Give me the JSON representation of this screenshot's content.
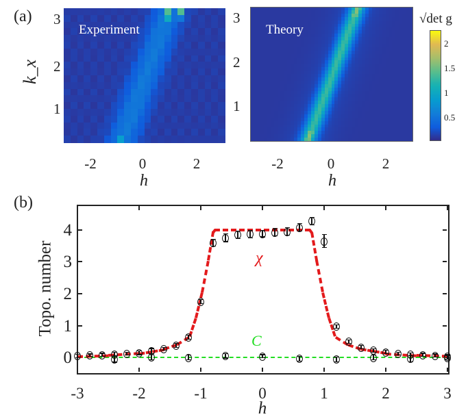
{
  "panel_labels": {
    "a": "(a)",
    "b": "(b)"
  },
  "colors": {
    "chi_theory": "#e31a1c",
    "c_theory": "#22dd22",
    "points": "#111111",
    "colormap": "parula"
  },
  "chart_data": [
    {
      "type": "heatmap",
      "panel": "(a)",
      "title": "Experiment",
      "xlabel": "h",
      "ylabel": "k_x",
      "xticks": [
        "-2",
        "0",
        "2"
      ],
      "yticks": [
        "1",
        "2",
        "3"
      ],
      "xlim": [
        -3,
        3
      ],
      "ylim": [
        0.25,
        3.26
      ],
      "colorscale_range": [
        0,
        2.2
      ]
    },
    {
      "type": "heatmap",
      "panel": "(a)",
      "title": "Theory",
      "xlabel": "h",
      "xticks": [
        "-2",
        "0",
        "2"
      ],
      "yticks": [
        "1",
        "2",
        "3"
      ],
      "xlim": [
        -3,
        3
      ],
      "ylim": [
        0.25,
        3.26
      ],
      "colorbar": {
        "label": "√det g",
        "ticks": [
          "0.5",
          "1",
          "1.5",
          "2"
        ],
        "range": [
          0,
          2.2
        ]
      }
    },
    {
      "type": "scatter",
      "panel": "(b)",
      "xlabel": "h",
      "ylabel": "Topo. number",
      "xlim": [
        -3,
        3
      ],
      "ylim": [
        -0.47,
        4.77
      ],
      "xticks": [
        "-3",
        "-2",
        "-1",
        "0",
        "1",
        "2",
        "3"
      ],
      "yticks": [
        "0",
        "1",
        "2",
        "3",
        "4"
      ],
      "grid": false,
      "annotations": {
        "chi": "χ",
        "c": "C"
      },
      "chi_points": {
        "x": [
          -3,
          -2.8,
          -2.6,
          -2.4,
          -2.2,
          -2.0,
          -1.8,
          -1.6,
          -1.4,
          -1.2,
          -1.0,
          -0.8,
          -0.6,
          -0.4,
          -0.2,
          0,
          0.2,
          0.4,
          0.6,
          0.8,
          1.0,
          1.2,
          1.4,
          1.6,
          1.8,
          2.0,
          2.2,
          2.4,
          2.6,
          2.8,
          3.0
        ],
        "y": [
          0.05,
          0.07,
          0.08,
          0.1,
          0.12,
          0.15,
          0.2,
          0.27,
          0.38,
          0.64,
          1.75,
          3.6,
          3.75,
          3.85,
          3.87,
          3.88,
          3.93,
          3.95,
          4.08,
          4.28,
          3.65,
          0.97,
          0.5,
          0.32,
          0.22,
          0.17,
          0.12,
          0.1,
          0.08,
          0.06,
          0.04
        ],
        "err": [
          0.05,
          0.04,
          0.05,
          0.06,
          0.05,
          0.06,
          0.08,
          0.05,
          0.06,
          0.06,
          0.07,
          0.1,
          0.12,
          0.12,
          0.12,
          0.1,
          0.12,
          0.12,
          0.12,
          0.12,
          0.2,
          0.05,
          0.05,
          0.05,
          0.05,
          0.05,
          0.05,
          0.05,
          0.05,
          0.05,
          0.05
        ]
      },
      "c_points": {
        "x": [
          -2.4,
          -1.8,
          -1.2,
          -0.6,
          0,
          0.6,
          1.2,
          1.8,
          2.4,
          3.0
        ],
        "y": [
          -0.05,
          0.02,
          0.0,
          0.05,
          0.04,
          -0.04,
          -0.06,
          0.0,
          -0.04,
          0.0
        ],
        "err": [
          0.1,
          0.1,
          0.07,
          0.07,
          0.05,
          0.08,
          0.07,
          0.07,
          0.1,
          0.05
        ]
      },
      "chi_theory": {
        "x": [
          -3,
          -2.5,
          -2,
          -1.6,
          -1.4,
          -1.2,
          -1.1,
          -1.0,
          -0.9,
          -0.82,
          -0.78,
          0.78,
          0.82,
          0.9,
          1.0,
          1.1,
          1.2,
          1.4,
          1.6,
          2,
          2.5,
          3
        ],
        "y": [
          0.03,
          0.06,
          0.12,
          0.25,
          0.38,
          0.62,
          1.2,
          2.0,
          3.0,
          3.9,
          4.0,
          4.0,
          3.9,
          3.0,
          2.0,
          1.2,
          0.62,
          0.38,
          0.25,
          0.12,
          0.06,
          0.03
        ]
      },
      "c_theory": {
        "x": [
          -3,
          3
        ],
        "y": [
          0,
          0
        ]
      }
    }
  ]
}
